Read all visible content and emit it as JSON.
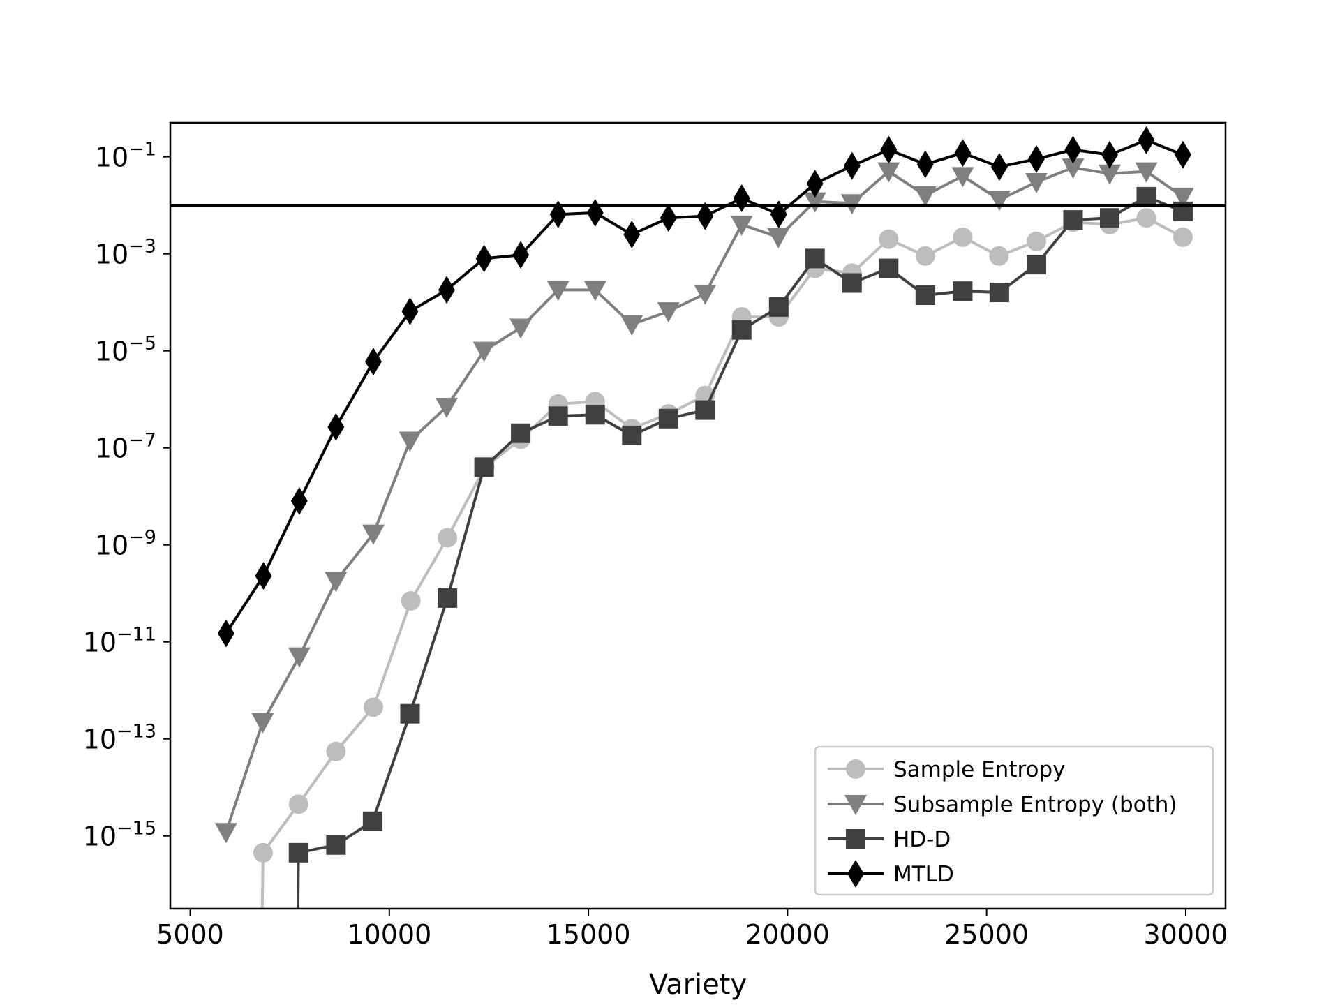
{
  "chart_data": {
    "type": "line",
    "xlabel": "Variety",
    "ylabel": "",
    "title": "",
    "xlim": [
      4500,
      31000
    ],
    "xticks": [
      5000,
      10000,
      15000,
      20000,
      25000,
      30000
    ],
    "ylim_log10": [
      -16.5,
      -0.3
    ],
    "yscale": "log",
    "yticks": [
      {
        "exp": -1,
        "base": "10",
        "sup": "−1"
      },
      {
        "exp": -3,
        "base": "10",
        "sup": "−3"
      },
      {
        "exp": -5,
        "base": "10",
        "sup": "−5"
      },
      {
        "exp": -7,
        "base": "10",
        "sup": "−7"
      },
      {
        "exp": -9,
        "base": "10",
        "sup": "−9"
      },
      {
        "exp": -11,
        "base": "10",
        "sup": "−11"
      },
      {
        "exp": -13,
        "base": "10",
        "sup": "−13"
      },
      {
        "exp": -15,
        "base": "10",
        "sup": "−15"
      }
    ],
    "hline_y": 0.01,
    "grid": false,
    "legend_position": "lower-right",
    "series": [
      {
        "name": "Sample Entropy",
        "color": "#bdbdbd",
        "marker": "circle",
        "x": [
          6800,
          6830,
          7720,
          8660,
          9600,
          10540,
          11460,
          12400,
          13300,
          14240,
          15170,
          16090,
          17010,
          17930,
          18850,
          19780,
          20690,
          21620,
          22540,
          23460,
          24400,
          25310,
          26250,
          27170,
          28090,
          29010,
          29930
        ],
        "y": [
          1e-17,
          4.5e-16,
          4.5e-15,
          5.5e-14,
          4.5e-13,
          7e-11,
          1.4e-09,
          4e-08,
          1.5e-07,
          8e-07,
          9e-07,
          2.5e-07,
          5e-07,
          1.2e-06,
          5e-05,
          5e-05,
          0.0005,
          0.0004,
          0.002,
          0.0009,
          0.0022,
          0.0009,
          0.0018,
          0.0045,
          0.004,
          0.0055,
          0.0022
        ]
      },
      {
        "name": "Subsample Entropy (both)",
        "color": "#7f7f7f",
        "marker": "triangle-down",
        "x": [
          5900,
          6820,
          7740,
          8660,
          9600,
          10520,
          11440,
          12380,
          13300,
          14240,
          15170,
          16090,
          17010,
          17930,
          18850,
          19770,
          20690,
          21620,
          22540,
          23460,
          24400,
          25320,
          26250,
          27170,
          28090,
          29010,
          29930
        ],
        "y": [
          1.2e-15,
          2.2e-13,
          5e-12,
          1.8e-10,
          1.7e-09,
          1.4e-07,
          7e-07,
          1e-05,
          3e-05,
          0.00018,
          0.00018,
          3.5e-05,
          6.5e-05,
          0.00015,
          0.004,
          0.0022,
          0.012,
          0.011,
          0.05,
          0.016,
          0.04,
          0.013,
          0.03,
          0.06,
          0.045,
          0.05,
          0.015
        ]
      },
      {
        "name": "HD-D",
        "color": "#404040",
        "marker": "square",
        "x": [
          7700,
          7720,
          8660,
          9580,
          10520,
          11460,
          12380,
          13300,
          14240,
          15170,
          16090,
          17010,
          17930,
          18850,
          19780,
          20690,
          21620,
          22540,
          23460,
          24400,
          25320,
          26250,
          27170,
          28090,
          29010,
          29930
        ],
        "y": [
          1e-17,
          4.5e-16,
          6.5e-16,
          2e-15,
          3.3e-13,
          8e-11,
          4e-08,
          2e-07,
          4.5e-07,
          4.8e-07,
          1.8e-07,
          4e-07,
          6e-07,
          2.7e-05,
          8e-05,
          0.0008,
          0.00025,
          0.0005,
          0.00014,
          0.00017,
          0.00016,
          0.0006,
          0.005,
          0.0055,
          0.015,
          0.0075
        ]
      },
      {
        "name": "MTLD",
        "color": "#000000",
        "marker": "diamond",
        "x": [
          5900,
          6840,
          7740,
          8660,
          9600,
          10520,
          11440,
          12380,
          13300,
          14240,
          15170,
          16090,
          17010,
          17930,
          18850,
          19780,
          20690,
          21620,
          22540,
          23460,
          24400,
          25320,
          26250,
          27170,
          28090,
          29010,
          29930
        ],
        "y": [
          1.5e-11,
          2.3e-10,
          8e-09,
          2.7e-07,
          6e-06,
          6.5e-05,
          0.00018,
          0.0008,
          0.00095,
          0.0065,
          0.007,
          0.0025,
          0.0055,
          0.006,
          0.014,
          0.0065,
          0.028,
          0.065,
          0.14,
          0.07,
          0.12,
          0.062,
          0.09,
          0.14,
          0.11,
          0.22,
          0.11
        ]
      }
    ]
  }
}
